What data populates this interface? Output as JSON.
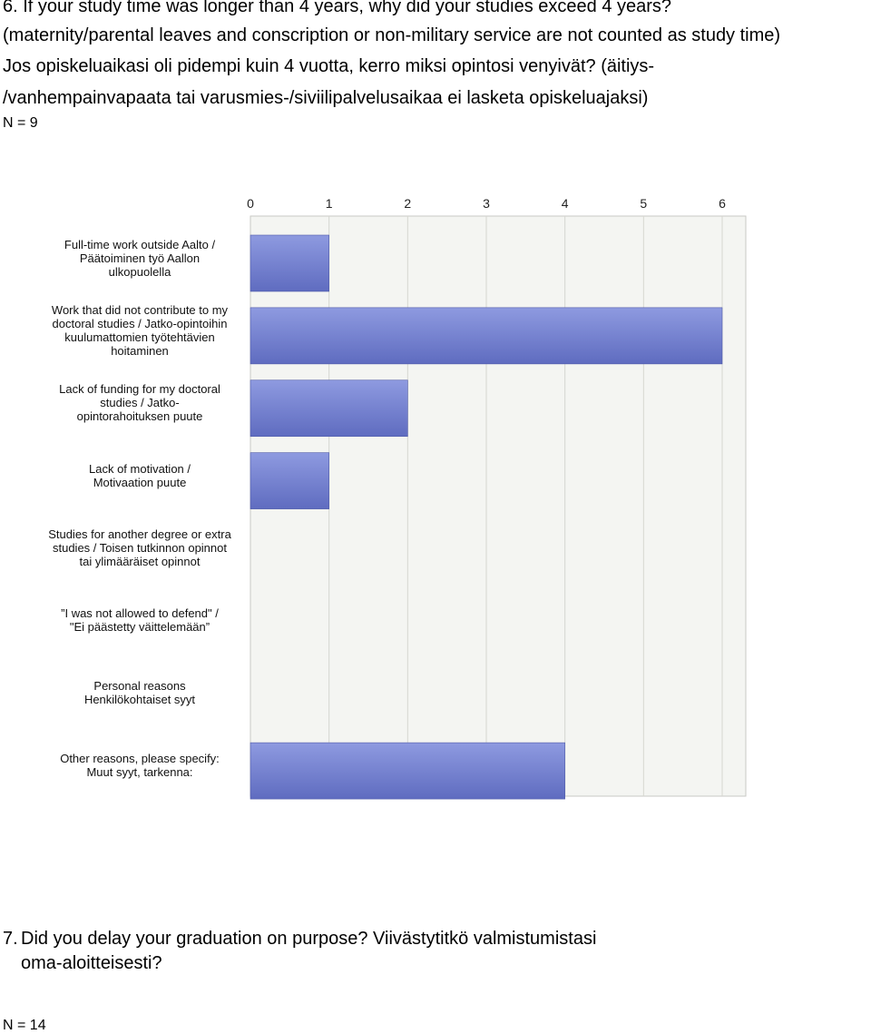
{
  "question6": {
    "lines": [
      "6. If your study time was longer than 4 years, why did your studies exceed 4 years?",
      "(maternity/parental leaves and conscription or non-military service are not counted as study time)",
      "Jos opiskeluaikasi oli pidempi kuin 4 vuotta, kerro miksi opintosi venyivät? (äitiys-",
      "/vanhempainvapaata tai varusmies-/siviilipalvelusaikaa ei lasketa opiskeluajaksi)"
    ],
    "n_label": "N = 9"
  },
  "chart_data": {
    "type": "bar",
    "orientation": "horizontal",
    "categories": [
      "Full-time work outside Aalto / Päätoiminen työ Aallon ulkopuolella",
      "Work that did not contribute to my doctoral studies / Jatko-opintoihin kuulumattomien työtehtävien hoitaminen",
      "Lack of funding for my doctoral studies / Jatko-opintorahoituksen puute",
      "Lack of motivation / Motivaation puute",
      "Studies for another degree or extra studies / Toisen tutkinnon opinnot tai ylimääräiset opinnot",
      "”I was not allowed to defend\" / \"Ei päästetty väittelemään”",
      "Personal reasons Henkilökohtaiset syyt",
      "Other reasons, please specify: Muut syyt, tarkenna:"
    ],
    "label_lines": [
      [
        "Full-time work outside Aalto /",
        "Päätoiminen työ Aallon",
        "ulkopuolella"
      ],
      [
        "Work that did not contribute to my",
        "doctoral studies / Jatko-opintoihin",
        "kuulumattomien työtehtävien",
        "hoitaminen"
      ],
      [
        "Lack of funding for my doctoral",
        "studies / Jatko-",
        "opintorahoituksen puute"
      ],
      [
        "Lack of motivation /",
        "Motivaation puute"
      ],
      [
        "Studies for another degree or extra",
        "studies / Toisen tutkinnon opinnot",
        "tai ylimääräiset opinnot"
      ],
      [
        "”I was not allowed to defend\" /",
        "\"Ei päästetty väittelemään”"
      ],
      [
        "Personal reasons",
        "Henkilökohtaiset syyt"
      ],
      [
        "Other reasons, please specify:",
        "Muut syyt, tarkenna:"
      ]
    ],
    "values": [
      1,
      6,
      2,
      1,
      0,
      0,
      0,
      4
    ],
    "xlim": [
      0,
      6
    ],
    "xticks": [
      0,
      1,
      2,
      3,
      4,
      5,
      6
    ],
    "axis_position": "top",
    "grid": true,
    "bar_color": "#7b88d8",
    "bar_color_dark": "#5f6cc0",
    "plot_bg": "#f4f5f2",
    "grid_color": "#d6d6d0"
  },
  "question7": {
    "number": "7.",
    "lines": [
      "Did you delay your graduation on purpose? Viivästytitkö valmistumistasi",
      "oma-aloitteisesti?"
    ],
    "n_label": "N = 14"
  }
}
